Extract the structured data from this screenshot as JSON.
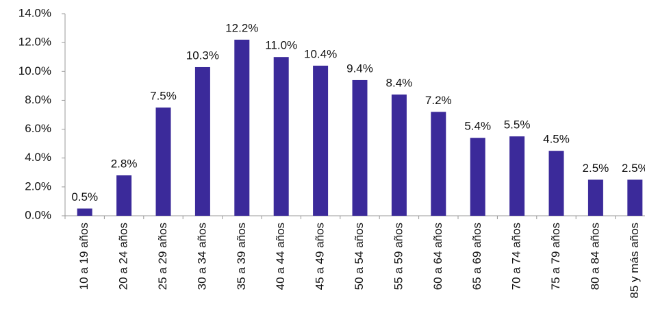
{
  "chart_data": {
    "type": "bar",
    "categories": [
      "10 a 19 años",
      "20 a 24 años",
      "25 a 29 años",
      "30 a 34 años",
      "35 a 39 años",
      "40 a 44 años",
      "45 a 49 años",
      "50 a 54 años",
      "55 a 59 años",
      "60 a 64 años",
      "65 a 69 años",
      "70 a 74 años",
      "75 a 79 años",
      "80 a 84 años",
      "85 y más años"
    ],
    "values": [
      0.5,
      2.8,
      7.5,
      10.3,
      12.2,
      11.0,
      10.4,
      9.4,
      8.4,
      7.2,
      5.4,
      5.5,
      4.5,
      2.5,
      2.5
    ],
    "value_labels": [
      "0.5%",
      "2.8%",
      "7.5%",
      "10.3%",
      "12.2%",
      "11.0%",
      "10.4%",
      "9.4%",
      "8.4%",
      "7.2%",
      "5.4%",
      "5.5%",
      "4.5%",
      "2.5%",
      "2.5%"
    ],
    "color": "#3b2a9a",
    "ylim": [
      0,
      14
    ],
    "yticks": [
      {
        "value": 0,
        "label": "0.0%"
      },
      {
        "value": 2,
        "label": "2.0%"
      },
      {
        "value": 4,
        "label": "4.0%"
      },
      {
        "value": 6,
        "label": "6.0%"
      },
      {
        "value": 8,
        "label": "8.0%"
      },
      {
        "value": 10,
        "label": "10.0%"
      },
      {
        "value": 12,
        "label": "12.0%"
      },
      {
        "value": 14,
        "label": "14.0%"
      }
    ],
    "grid": false
  }
}
